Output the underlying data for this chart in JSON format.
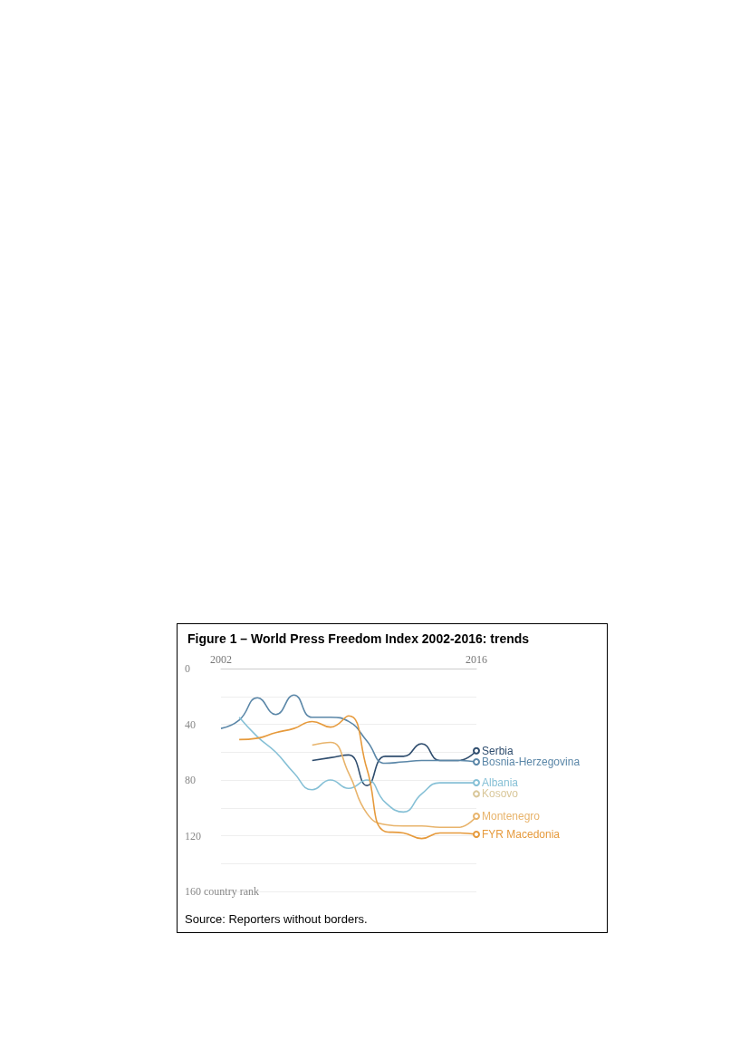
{
  "chart_data": {
    "type": "line",
    "title": "Figure 1 – World Press Freedom Index 2002-2016: trends",
    "xlim": [
      2002,
      2016
    ],
    "xticks": [
      2002,
      2016
    ],
    "ylim": [
      160,
      0
    ],
    "yticks": [
      0,
      {
        "value": 20,
        "label": null
      },
      40,
      {
        "value": 60,
        "label": null
      },
      80,
      {
        "value": 100,
        "label": null
      },
      120,
      {
        "value": 140,
        "label": null
      },
      {
        "value": 160,
        "label": "160 country rank"
      }
    ],
    "grid": "y",
    "legend": "right",
    "line_style": "solid",
    "annotations": [
      "Source: Reporters without borders."
    ],
    "series": [
      {
        "name": "Serbia",
        "color": "#2f4d6e",
        "x": [
          2007,
          2008,
          2009,
          2010,
          2011,
          2012,
          2013,
          2014,
          2015,
          2016
        ],
        "values": [
          66,
          64,
          62,
          84,
          63,
          63,
          54,
          66,
          66,
          59
        ]
      },
      {
        "name": "Bosnia-Herzegovina",
        "color": "#5b87a8",
        "x": [
          2002,
          2003,
          2004,
          2005,
          2006,
          2007,
          2008,
          2009,
          2010,
          2011,
          2012,
          2013,
          2014,
          2015,
          2016
        ],
        "values": [
          43,
          37,
          21,
          33,
          19,
          35,
          35,
          38,
          52,
          68,
          67,
          66,
          66,
          66,
          67
        ]
      },
      {
        "name": "Albania",
        "color": "#86c0d6",
        "x": [
          2003,
          2004,
          2005,
          2006,
          2007,
          2008,
          2009,
          2010,
          2011,
          2012,
          2013,
          2014,
          2015,
          2016
        ],
        "values": [
          35,
          49,
          60,
          75,
          87,
          80,
          86,
          80,
          96,
          103,
          90,
          82,
          82,
          82
        ]
      },
      {
        "name": "Kosovo",
        "color": "#d9c79a",
        "x": [
          2016
        ],
        "values": [
          90
        ],
        "marker": "circle"
      },
      {
        "name": "Montenegro",
        "color": "#e8b46c",
        "x": [
          2007,
          2008,
          2009,
          2010,
          2011,
          2012,
          2013,
          2014,
          2015,
          2016
        ],
        "values": [
          55,
          53,
          75,
          104,
          112,
          113,
          113,
          114,
          114,
          106
        ]
      },
      {
        "name": "FYR Macedonia",
        "color": "#e69a3c",
        "x": [
          2003,
          2004,
          2005,
          2006,
          2007,
          2008,
          2009,
          2010,
          2011,
          2012,
          2013,
          2014,
          2015,
          2016
        ],
        "values": [
          51,
          50,
          46,
          43,
          38,
          42,
          34,
          72,
          117,
          118,
          122,
          118,
          118,
          119
        ]
      }
    ]
  }
}
